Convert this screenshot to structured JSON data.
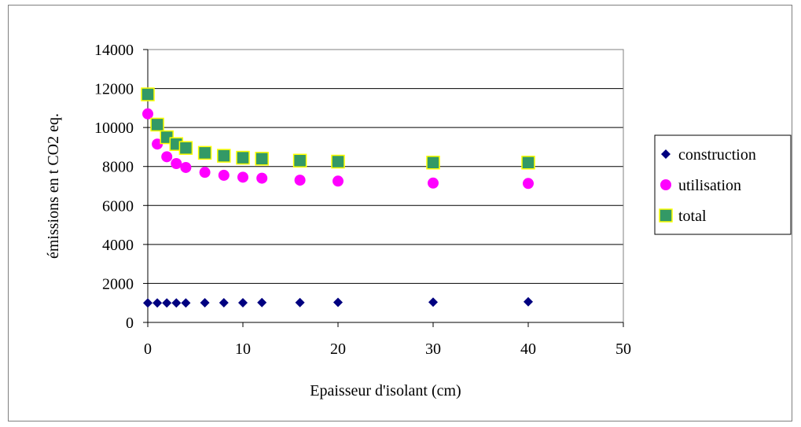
{
  "chart_data": {
    "type": "scatter",
    "title": "",
    "xlabel": "Epaisseur d'isolant (cm)",
    "ylabel": "émissions en t CO2 eq.",
    "xlim": [
      0,
      50
    ],
    "ylim": [
      0,
      14000
    ],
    "xticks": [
      0,
      10,
      20,
      30,
      40,
      50
    ],
    "yticks": [
      0,
      2000,
      4000,
      6000,
      8000,
      10000,
      12000,
      14000
    ],
    "grid": "horizontal",
    "legend_position": "right",
    "series": [
      {
        "name": "construction",
        "marker": "diamond",
        "color": "#000080",
        "points": [
          [
            0,
            1000
          ],
          [
            1,
            1000
          ],
          [
            2,
            1000
          ],
          [
            3,
            1000
          ],
          [
            4,
            1000
          ],
          [
            6,
            1010
          ],
          [
            8,
            1010
          ],
          [
            10,
            1010
          ],
          [
            12,
            1020
          ],
          [
            16,
            1020
          ],
          [
            20,
            1030
          ],
          [
            30,
            1040
          ],
          [
            40,
            1060
          ]
        ]
      },
      {
        "name": "utilisation",
        "marker": "circle",
        "color": "#ff00ff",
        "points": [
          [
            0,
            10700
          ],
          [
            1,
            9150
          ],
          [
            2,
            8500
          ],
          [
            3,
            8150
          ],
          [
            4,
            7950
          ],
          [
            6,
            7700
          ],
          [
            8,
            7550
          ],
          [
            10,
            7450
          ],
          [
            12,
            7400
          ],
          [
            16,
            7300
          ],
          [
            20,
            7250
          ],
          [
            30,
            7150
          ],
          [
            40,
            7130
          ]
        ]
      },
      {
        "name": "total",
        "marker": "square",
        "color": "#339966",
        "stroke": "#ffff00",
        "points": [
          [
            0,
            11700
          ],
          [
            1,
            10150
          ],
          [
            2,
            9500
          ],
          [
            3,
            9150
          ],
          [
            4,
            8950
          ],
          [
            6,
            8700
          ],
          [
            8,
            8550
          ],
          [
            10,
            8450
          ],
          [
            12,
            8400
          ],
          [
            16,
            8300
          ],
          [
            20,
            8250
          ],
          [
            30,
            8200
          ],
          [
            40,
            8200
          ]
        ]
      }
    ]
  }
}
